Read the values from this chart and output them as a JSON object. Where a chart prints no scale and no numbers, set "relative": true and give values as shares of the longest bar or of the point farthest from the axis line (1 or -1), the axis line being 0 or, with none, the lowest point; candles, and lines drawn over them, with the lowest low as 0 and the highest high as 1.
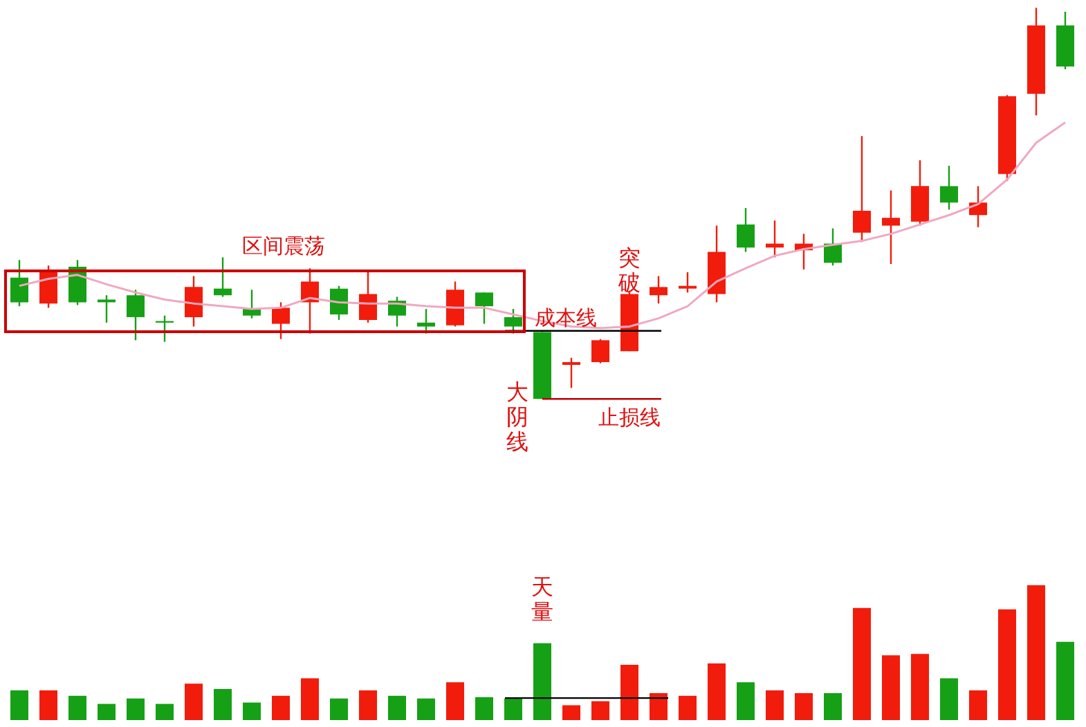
{
  "chart_data": [
    {
      "type": "candlestick",
      "relative": true,
      "categories": [
        null,
        null,
        null,
        null,
        null,
        null,
        null,
        null,
        null,
        null,
        null,
        null,
        null,
        null,
        null,
        null,
        null,
        null,
        null,
        null,
        null,
        null,
        null,
        null,
        null,
        null,
        null,
        null,
        null,
        null,
        null,
        null,
        null,
        null,
        null,
        null,
        null
      ],
      "series": [
        {
          "type": "candlestick",
          "ohlc": [
            [
              0.31,
              0.355,
              0.237,
              0.247
            ],
            [
              0.244,
              0.341,
              0.233,
              0.331
            ],
            [
              0.338,
              0.355,
              0.24,
              0.247
            ],
            [
              0.254,
              0.265,
              0.195,
              0.247
            ],
            [
              0.265,
              0.279,
              0.15,
              0.209
            ],
            [
              0.199,
              0.213,
              0.146,
              0.195
            ],
            [
              0.209,
              0.314,
              0.185,
              0.286
            ],
            [
              0.282,
              0.362,
              0.261,
              0.265
            ],
            [
              0.23,
              0.279,
              0.206,
              0.213
            ],
            [
              0.192,
              0.247,
              0.153,
              0.233
            ],
            [
              0.247,
              0.334,
              0.167,
              0.3
            ],
            [
              0.282,
              0.289,
              0.202,
              0.216
            ],
            [
              0.202,
              0.324,
              0.195,
              0.268
            ],
            [
              0.251,
              0.261,
              0.185,
              0.213
            ],
            [
              0.195,
              0.23,
              0.167,
              0.185
            ],
            [
              0.188,
              0.3,
              0.185,
              0.279
            ],
            [
              0.272,
              0.272,
              0.192,
              0.237
            ],
            [
              0.209,
              0.23,
              0.167,
              0.185
            ],
            [
              0.171,
              0.171,
              0,
              0
            ],
            [
              0.087,
              0.105,
              0.028,
              0.094
            ],
            [
              0.094,
              0.153,
              0.091,
              0.15
            ],
            [
              0.122,
              0.272,
              0.122,
              0.268
            ],
            [
              0.265,
              0.314,
              0.244,
              0.286
            ],
            [
              0.282,
              0.324,
              0.272,
              0.289
            ],
            [
              0.268,
              0.443,
              0.247,
              0.376
            ],
            [
              0.446,
              0.488,
              0.376,
              0.387
            ],
            [
              0.387,
              0.456,
              0.362,
              0.397
            ],
            [
              0.38,
              0.422,
              0.331,
              0.397
            ],
            [
              0.397,
              0.436,
              0.341,
              0.348
            ],
            [
              0.425,
              0.672,
              0.401,
              0.481
            ],
            [
              0.443,
              0.533,
              0.345,
              0.463
            ],
            [
              0.453,
              0.61,
              0.443,
              0.544
            ],
            [
              0.544,
              0.596,
              0.484,
              0.502
            ],
            [
              0.47,
              0.544,
              0.439,
              0.502
            ],
            [
              0.575,
              0.777,
              0.557,
              0.774
            ],
            [
              0.78,
              1,
              0.725,
              0.955
            ],
            [
              0.955,
              0.99,
              0.843,
              0.85
            ]
          ],
          "colors": [
            "#16a016",
            "#f21c0c",
            "#16a016",
            "#16a016",
            "#16a016",
            "#16a016",
            "#f21c0c",
            "#16a016",
            "#16a016",
            "#f21c0c",
            "#f21c0c",
            "#16a016",
            "#f21c0c",
            "#16a016",
            "#16a016",
            "#f21c0c",
            "#16a016",
            "#16a016",
            "#16a016",
            "#f21c0c",
            "#f21c0c",
            "#f21c0c",
            "#f21c0c",
            "#f21c0c",
            "#f21c0c",
            "#16a016",
            "#f21c0c",
            "#f21c0c",
            "#16a016",
            "#f21c0c",
            "#f21c0c",
            "#f21c0c",
            "#16a016",
            "#f21c0c",
            "#f21c0c",
            "#f21c0c",
            "#16a016"
          ]
        },
        {
          "type": "line",
          "color": "#f0a8c0",
          "values": [
            0.289,
            0.307,
            0.317,
            0.293,
            0.272,
            0.254,
            0.244,
            0.237,
            0.23,
            0.233,
            0.258,
            0.247,
            0.244,
            0.244,
            0.237,
            0.233,
            0.233,
            0.216,
            0.199,
            0.185,
            0.181,
            0.185,
            0.206,
            0.237,
            0.3,
            0.334,
            0.366,
            0.383,
            0.394,
            0.404,
            0.422,
            0.446,
            0.47,
            0.498,
            0.561,
            0.655,
            0.707
          ]
        }
      ],
      "ref_lines": [
        {
          "axis": "y",
          "value": 0.174,
          "label": "成本线",
          "color": "#000000"
        },
        {
          "axis": "y",
          "value": 0,
          "label": "止损线",
          "color": "#c00000"
        }
      ],
      "annotations": [
        "区间震荡",
        "大阴线",
        "突破"
      ]
    },
    {
      "type": "bar",
      "relative": true,
      "categories": [
        null,
        null,
        null,
        null,
        null,
        null,
        null,
        null,
        null,
        null,
        null,
        null,
        null,
        null,
        null,
        null,
        null,
        null,
        null,
        null,
        null,
        null,
        null,
        null,
        null,
        null,
        null,
        null,
        null,
        null,
        null,
        null,
        null,
        null,
        null,
        null,
        null
      ],
      "values": [
        0.22,
        0.22,
        0.18,
        0.12,
        0.16,
        0.12,
        0.27,
        0.23,
        0.13,
        0.18,
        0.31,
        0.16,
        0.22,
        0.18,
        0.16,
        0.28,
        0.17,
        0.16,
        0.57,
        0.11,
        0.14,
        0.41,
        0.2,
        0.18,
        0.42,
        0.28,
        0.22,
        0.2,
        0.2,
        0.83,
        0.48,
        0.49,
        0.31,
        0.22,
        0.82,
        1,
        0.58
      ],
      "colors": [
        "#16a016",
        "#f21c0c",
        "#16a016",
        "#16a016",
        "#16a016",
        "#16a016",
        "#f21c0c",
        "#16a016",
        "#16a016",
        "#f21c0c",
        "#f21c0c",
        "#16a016",
        "#f21c0c",
        "#16a016",
        "#16a016",
        "#f21c0c",
        "#16a016",
        "#16a016",
        "#16a016",
        "#f21c0c",
        "#f21c0c",
        "#f21c0c",
        "#f21c0c",
        "#f21c0c",
        "#f21c0c",
        "#16a016",
        "#f21c0c",
        "#f21c0c",
        "#16a016",
        "#f21c0c",
        "#f21c0c",
        "#f21c0c",
        "#16a016",
        "#f21c0c",
        "#f21c0c",
        "#f21c0c",
        "#16a016"
      ],
      "ref_lines": [
        {
          "axis": "y",
          "value": 0.163,
          "color": "#000000"
        }
      ],
      "annotations": [
        "天量"
      ]
    }
  ]
}
